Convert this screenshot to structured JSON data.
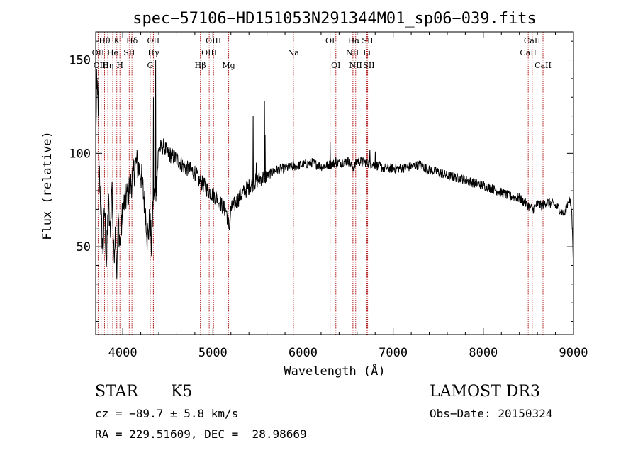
{
  "chart_data": {
    "type": "line",
    "title": "spec−57106−HD151053N291344M01_sp06−039.fits",
    "xlabel": "Wavelength (Å)",
    "ylabel": "Flux (relative)",
    "xlim": [
      3700,
      9000
    ],
    "ylim": [
      3,
      165
    ],
    "x_ticks": [
      4000,
      5000,
      6000,
      7000,
      8000,
      9000
    ],
    "y_ticks": [
      50,
      100,
      150
    ],
    "grid": false,
    "line_color": "#000000",
    "line_marker_color": "#b22222",
    "spectrum_anchors": [
      [
        3700,
        110
      ],
      [
        3720,
        140
      ],
      [
        3735,
        95
      ],
      [
        3750,
        80
      ],
      [
        3765,
        60
      ],
      [
        3780,
        48
      ],
      [
        3800,
        70
      ],
      [
        3820,
        40
      ],
      [
        3840,
        75
      ],
      [
        3860,
        55
      ],
      [
        3880,
        85
      ],
      [
        3900,
        45
      ],
      [
        3920,
        60
      ],
      [
        3935,
        35
      ],
      [
        3950,
        65
      ],
      [
        3970,
        50
      ],
      [
        4000,
        70
      ],
      [
        4050,
        78
      ],
      [
        4100,
        85
      ],
      [
        4150,
        95
      ],
      [
        4200,
        90
      ],
      [
        4250,
        70
      ],
      [
        4280,
        55
      ],
      [
        4300,
        65
      ],
      [
        4320,
        50
      ],
      [
        4340,
        80
      ],
      [
        4360,
        75
      ],
      [
        4400,
        102
      ],
      [
        4450,
        104
      ],
      [
        4500,
        100
      ],
      [
        4600,
        97
      ],
      [
        4700,
        92
      ],
      [
        4800,
        90
      ],
      [
        4850,
        85
      ],
      [
        4900,
        83
      ],
      [
        4950,
        80
      ],
      [
        5000,
        78
      ],
      [
        5050,
        76
      ],
      [
        5100,
        72
      ],
      [
        5150,
        69
      ],
      [
        5180,
        60
      ],
      [
        5200,
        70
      ],
      [
        5250,
        73
      ],
      [
        5300,
        77
      ],
      [
        5400,
        82
      ],
      [
        5500,
        86
      ],
      [
        5600,
        88
      ],
      [
        5700,
        91
      ],
      [
        5800,
        92
      ],
      [
        5900,
        93
      ],
      [
        6000,
        94
      ],
      [
        6100,
        95
      ],
      [
        6200,
        93
      ],
      [
        6300,
        94
      ],
      [
        6400,
        95
      ],
      [
        6500,
        96
      ],
      [
        6563,
        92
      ],
      [
        6600,
        96
      ],
      [
        6700,
        95
      ],
      [
        6800,
        94
      ],
      [
        6900,
        92
      ],
      [
        7000,
        92
      ],
      [
        7100,
        92
      ],
      [
        7200,
        93
      ],
      [
        7300,
        94
      ],
      [
        7400,
        91
      ],
      [
        7500,
        90
      ],
      [
        7600,
        88
      ],
      [
        7700,
        87
      ],
      [
        7800,
        86
      ],
      [
        7900,
        84
      ],
      [
        8000,
        83
      ],
      [
        8100,
        81
      ],
      [
        8200,
        79
      ],
      [
        8300,
        77
      ],
      [
        8400,
        76
      ],
      [
        8500,
        72
      ],
      [
        8550,
        70
      ],
      [
        8600,
        73
      ],
      [
        8650,
        72
      ],
      [
        8700,
        74
      ],
      [
        8750,
        73
      ],
      [
        8800,
        72
      ],
      [
        8850,
        70
      ],
      [
        8900,
        67
      ],
      [
        8950,
        76
      ],
      [
        8980,
        70
      ],
      [
        9000,
        40
      ]
    ],
    "spectrum_spikes": [
      [
        3710,
        145
      ],
      [
        3730,
        138
      ],
      [
        4270,
        48
      ],
      [
        4318,
        45
      ],
      [
        4340,
        130
      ],
      [
        4365,
        150
      ],
      [
        5445,
        120
      ],
      [
        5480,
        95
      ],
      [
        5573,
        128
      ],
      [
        5578,
        110
      ],
      [
        5890,
        97
      ],
      [
        6300,
        106
      ],
      [
        6364,
        98
      ],
      [
        6563,
        93
      ],
      [
        6740,
        102
      ],
      [
        6800,
        101
      ]
    ],
    "lines": [
      {
        "label": "Hθ",
        "x": 3798,
        "row": 1
      },
      {
        "label": "K",
        "x": 3934,
        "row": 1
      },
      {
        "label": "Hδ",
        "x": 4102,
        "row": 1
      },
      {
        "label": "OII",
        "x": 4340,
        "row": 1
      },
      {
        "label": "OIII",
        "x": 5007,
        "row": 1
      },
      {
        "label": "OI",
        "x": 6300,
        "row": 1
      },
      {
        "label": "Hα",
        "x": 6563,
        "row": 1
      },
      {
        "label": "SII",
        "x": 6716,
        "row": 1
      },
      {
        "label": "CaII",
        "x": 8542,
        "row": 1
      },
      {
        "label": "OII",
        "x": 3727,
        "row": 2
      },
      {
        "label": "He",
        "x": 3889,
        "row": 2
      },
      {
        "label": "SII",
        "x": 4072,
        "row": 2
      },
      {
        "label": "Hγ",
        "x": 4341,
        "row": 2
      },
      {
        "label": "OIII",
        "x": 4959,
        "row": 2
      },
      {
        "label": "Na",
        "x": 5893,
        "row": 2
      },
      {
        "label": "NII",
        "x": 6548,
        "row": 2
      },
      {
        "label": "Li",
        "x": 6708,
        "row": 2
      },
      {
        "label": "CaII",
        "x": 8498,
        "row": 2
      },
      {
        "label": "OIII",
        "x": 3760,
        "row": 3
      },
      {
        "label": "Hη",
        "x": 3835,
        "row": 3
      },
      {
        "label": "H",
        "x": 3969,
        "row": 3
      },
      {
        "label": "G",
        "x": 4305,
        "row": 3
      },
      {
        "label": "Hβ",
        "x": 4861,
        "row": 3
      },
      {
        "label": "Mg",
        "x": 5175,
        "row": 3
      },
      {
        "label": "OI",
        "x": 6364,
        "row": 3
      },
      {
        "label": "NII",
        "x": 6584,
        "row": 3
      },
      {
        "label": "SII",
        "x": 6731,
        "row": 3
      },
      {
        "label": "CaII",
        "x": 8662,
        "row": 3
      }
    ]
  },
  "info": {
    "object_class": "STAR",
    "subclass": "K5",
    "survey": "LAMOST DR3",
    "cz": "cz = −89.7 ± 5.8 km/s",
    "obs_date": "Obs−Date: 20150324",
    "coords": "RA = 229.51609, DEC =  28.98669"
  }
}
